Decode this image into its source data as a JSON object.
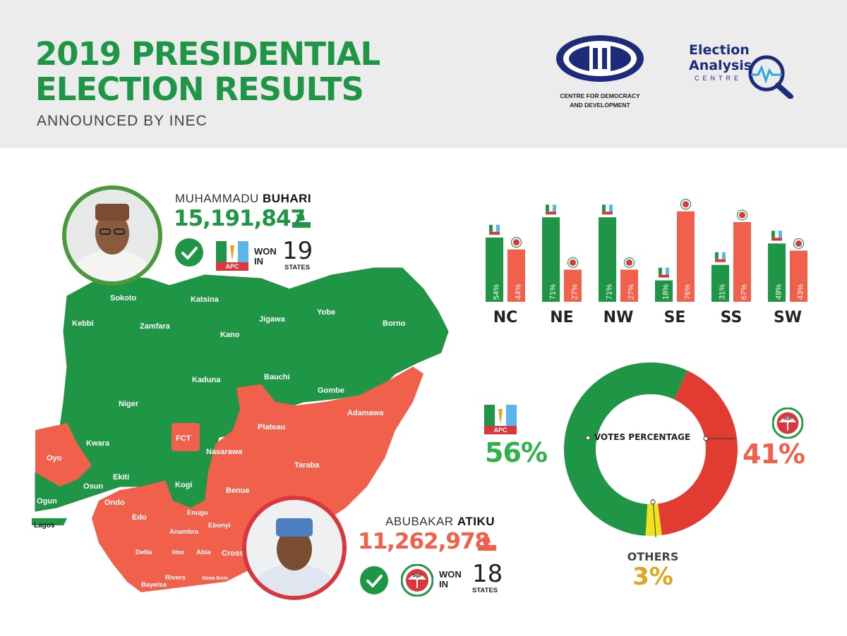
{
  "header": {
    "title_line1": "2019 PRESIDENTIAL",
    "title_line2": "ELECTION RESULTS",
    "subtitle": "ANNOUNCED BY INEC",
    "cdd_line1": "CENTRE FOR DEMOCRACY",
    "cdd_line2": "AND DEVELOPMENT",
    "eac_line1": "Election",
    "eac_line2": "Analysis",
    "eac_line3": "CENTRE"
  },
  "colors": {
    "apc": "#1e9646",
    "pdp": "#f1604a",
    "others": "#f0e21c",
    "pdp_dark": "#e23b32"
  },
  "candidates": {
    "buhari": {
      "first": "MUHAMMADU",
      "last": "BUHARI",
      "votes": "15,191,847",
      "party": "APC",
      "won": "WON",
      "in": "IN",
      "states_won": "19",
      "states_label": "STATES"
    },
    "atiku": {
      "first": "ABUBAKAR",
      "last": "ATIKU",
      "votes": "11,262,978",
      "party": "PDP",
      "won": "WON",
      "in": "IN",
      "states_won": "18",
      "states_label": "STATES"
    }
  },
  "map_labels": {
    "apc_states": [
      "Sokoto",
      "Katsina",
      "Kebbi",
      "Zamfara",
      "Jigawa",
      "Yobe",
      "Borno",
      "Kano",
      "Kaduna",
      "Bauchi",
      "Gombe",
      "Niger",
      "Kwara",
      "Nasarawa",
      "Ekiti",
      "Osun",
      "Kogi",
      "Ogun",
      "Lagos"
    ],
    "pdp_states": [
      "Adamawa",
      "Plateau",
      "FCT",
      "Oyo",
      "Taraba",
      "Benue",
      "Ondo",
      "Edo",
      "Enugu",
      "Ebonyi",
      "Anambra",
      "Delta",
      "Imo",
      "Abia",
      "Cross River",
      "Bayelsa",
      "Rivers",
      "Akwa Ibom"
    ]
  },
  "chart_data": [
    {
      "type": "bar",
      "categories": [
        "NC",
        "NE",
        "NW",
        "SE",
        "SS",
        "SW"
      ],
      "series": [
        {
          "name": "APC",
          "values": [
            54,
            71,
            71,
            18,
            31,
            49
          ]
        },
        {
          "name": "PDP",
          "values": [
            44,
            27,
            27,
            76,
            67,
            43
          ]
        }
      ],
      "labels": {
        "APC": [
          "54%",
          "71%",
          "71%",
          "18%",
          "31%",
          "49%"
        ],
        "PDP": [
          "44%",
          "27%",
          "27%",
          "76%",
          "67%",
          "43%"
        ]
      },
      "ylim": [
        0,
        80
      ]
    },
    {
      "type": "pie",
      "title": "VOTES PERCENTAGE",
      "categories": [
        "APC",
        "PDP",
        "OTHERS"
      ],
      "values": [
        56,
        41,
        3
      ],
      "labels": [
        "56%",
        "41%",
        "3%"
      ]
    }
  ]
}
